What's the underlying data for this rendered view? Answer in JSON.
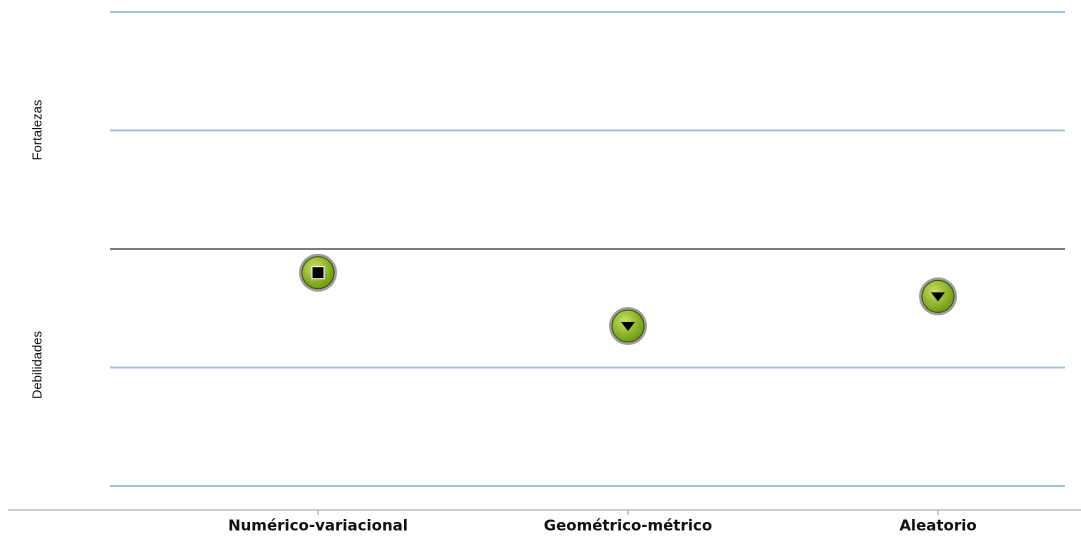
{
  "chart_data": {
    "type": "scatter",
    "categories": [
      "Numérico-variacional",
      "Geométrico-métrico",
      "Aleatorio"
    ],
    "values": [
      -0.2,
      -0.65,
      -0.4
    ],
    "markers": [
      "square",
      "triangle-down",
      "triangle-down"
    ],
    "color": "#8db31f",
    "ylim": [
      -2,
      2
    ],
    "yticks": [
      -2,
      -1,
      0,
      1,
      2
    ],
    "grid": true,
    "upper_label": "Fortalezas",
    "lower_label": "Debilidades"
  }
}
